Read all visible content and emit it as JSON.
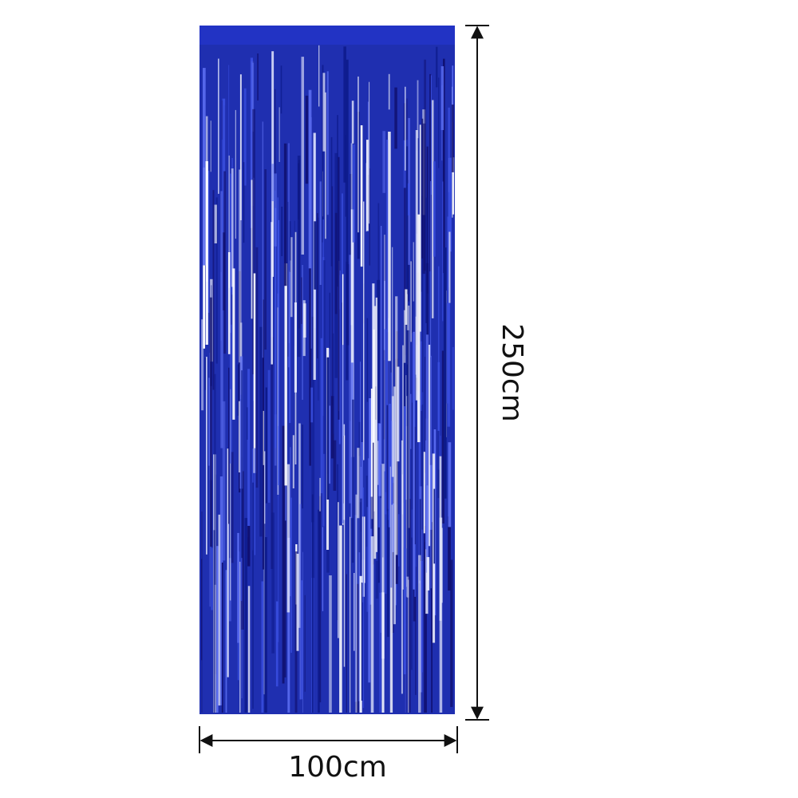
{
  "dimensions": {
    "height": "250cm",
    "width": "100cm"
  }
}
